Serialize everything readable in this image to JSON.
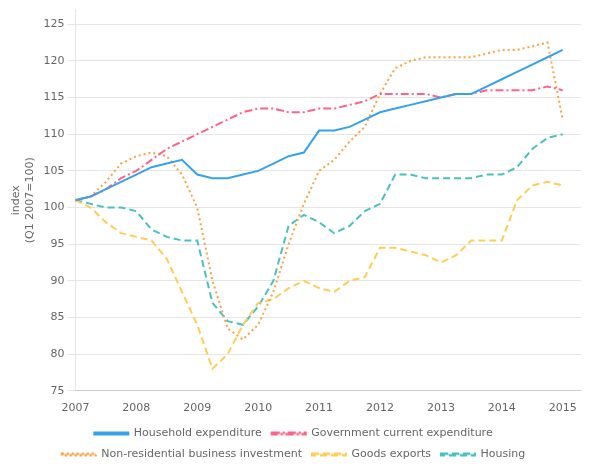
{
  "chart_data": {
    "type": "line",
    "y_label": "index\n(Q1 2007=100)",
    "x": [
      2007.0,
      2007.25,
      2007.5,
      2007.75,
      2008.0,
      2008.25,
      2008.5,
      2008.75,
      2009.0,
      2009.25,
      2009.5,
      2009.75,
      2010.0,
      2010.25,
      2010.5,
      2010.75,
      2011.0,
      2011.25,
      2011.5,
      2011.75,
      2012.0,
      2012.25,
      2012.5,
      2012.75,
      2013.0,
      2013.25,
      2013.5,
      2013.75,
      2014.0,
      2014.25,
      2014.5,
      2014.75,
      2015.0
    ],
    "series": [
      {
        "name": "Household expenditure",
        "line_style": "solid",
        "values": [
          101.0,
          101.5,
          102.5,
          103.5,
          104.5,
          105.5,
          106.0,
          106.5,
          104.5,
          104.0,
          104.0,
          104.5,
          105.0,
          106.0,
          107.0,
          107.5,
          110.5,
          110.5,
          111.0,
          112.0,
          113.0,
          113.5,
          114.0,
          114.5,
          115.0,
          115.5,
          115.5,
          116.5,
          117.5,
          118.5,
          119.5,
          120.5,
          121.5
        ]
      },
      {
        "name": "Government current expenditure",
        "line_style": "dashdot",
        "values": [
          101.0,
          101.5,
          102.5,
          104.0,
          105.0,
          106.5,
          108.0,
          109.0,
          110.0,
          111.0,
          112.0,
          113.0,
          113.5,
          113.5,
          113.0,
          113.0,
          113.5,
          113.5,
          114.0,
          114.5,
          115.5,
          115.5,
          115.5,
          115.5,
          115.0,
          115.5,
          115.5,
          116.0,
          116.0,
          116.0,
          116.0,
          116.5,
          116.0
        ]
      },
      {
        "name": "Non-residential business investment",
        "line_style": "dotted",
        "values": [
          101.0,
          101.5,
          103.5,
          106.0,
          107.0,
          107.5,
          107.0,
          104.5,
          100.0,
          90.0,
          83.5,
          82.0,
          84.0,
          88.5,
          95.0,
          100.5,
          105.0,
          106.5,
          109.0,
          111.0,
          115.5,
          119.0,
          120.0,
          120.5,
          120.5,
          120.5,
          120.5,
          121.0,
          121.5,
          121.5,
          122.0,
          122.5,
          112.0
        ]
      },
      {
        "name": "Goods exports",
        "line_style": "dashed",
        "values": [
          101.0,
          100.0,
          98.0,
          96.5,
          96.0,
          95.5,
          93.0,
          88.5,
          84.0,
          78.0,
          80.0,
          84.0,
          87.0,
          87.5,
          89.0,
          90.0,
          89.0,
          88.5,
          90.0,
          90.5,
          94.5,
          94.5,
          94.0,
          93.5,
          92.5,
          93.5,
          95.5,
          95.5,
          95.5,
          101.0,
          103.0,
          103.5,
          103.0
        ]
      },
      {
        "name": "Housing",
        "line_style": "dashed",
        "values": [
          101.0,
          100.5,
          100.0,
          100.0,
          99.5,
          97.0,
          96.0,
          95.5,
          95.5,
          87.0,
          84.5,
          84.0,
          86.5,
          90.0,
          97.5,
          99.0,
          98.0,
          96.5,
          97.5,
          99.5,
          100.5,
          104.5,
          104.5,
          104.0,
          104.0,
          104.0,
          104.0,
          104.5,
          104.5,
          105.5,
          108.0,
          109.5,
          110.0
        ]
      }
    ],
    "xlim": [
      2007.0,
      2015.3
    ],
    "xticks": [
      2007,
      2008,
      2009,
      2010,
      2011,
      2012,
      2013,
      2014,
      2015
    ],
    "ylim": [
      75,
      127
    ],
    "yticks": [
      75,
      80,
      85,
      90,
      95,
      100,
      105,
      110,
      115,
      120,
      125
    ],
    "grid": "y",
    "legend": "bottom"
  }
}
